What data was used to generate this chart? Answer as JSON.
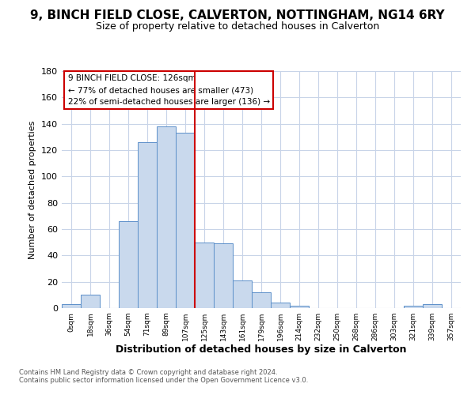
{
  "title": "9, BINCH FIELD CLOSE, CALVERTON, NOTTINGHAM, NG14 6RY",
  "subtitle": "Size of property relative to detached houses in Calverton",
  "xlabel": "Distribution of detached houses by size in Calverton",
  "ylabel": "Number of detached properties",
  "bin_labels": [
    "0sqm",
    "18sqm",
    "36sqm",
    "54sqm",
    "71sqm",
    "89sqm",
    "107sqm",
    "125sqm",
    "143sqm",
    "161sqm",
    "179sqm",
    "196sqm",
    "214sqm",
    "232sqm",
    "250sqm",
    "268sqm",
    "286sqm",
    "303sqm",
    "321sqm",
    "339sqm",
    "357sqm"
  ],
  "bar_heights": [
    3,
    10,
    0,
    66,
    126,
    138,
    133,
    50,
    49,
    21,
    12,
    4,
    2,
    0,
    0,
    0,
    0,
    0,
    2,
    3,
    0
  ],
  "bar_color": "#c9d9ed",
  "bar_edge_color": "#5b8fc9",
  "vline_color": "#cc0000",
  "annotation_title": "9 BINCH FIELD CLOSE: 126sqm",
  "annotation_line1": "← 77% of detached houses are smaller (473)",
  "annotation_line2": "22% of semi-detached houses are larger (136) →",
  "annotation_box_color": "#cc0000",
  "ylim": [
    0,
    180
  ],
  "yticks": [
    0,
    20,
    40,
    60,
    80,
    100,
    120,
    140,
    160,
    180
  ],
  "footer1": "Contains HM Land Registry data © Crown copyright and database right 2024.",
  "footer2": "Contains public sector information licensed under the Open Government Licence v3.0.",
  "bg_color": "#ffffff",
  "grid_color": "#c8d4e8",
  "title_fontsize": 11,
  "subtitle_fontsize": 9
}
